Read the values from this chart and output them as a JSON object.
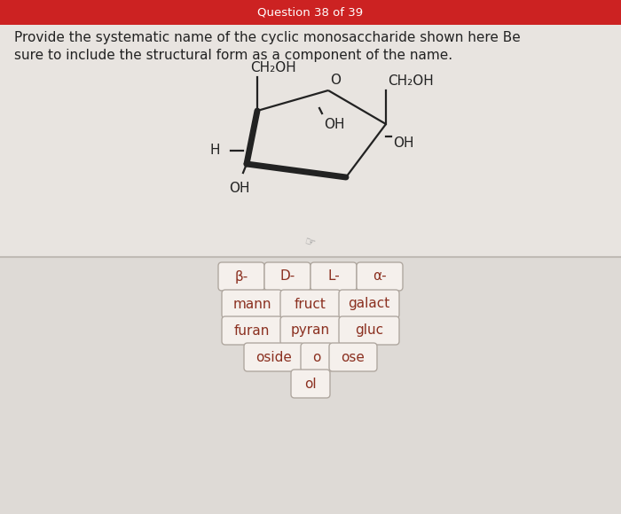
{
  "header_text": "Question 38 of 39",
  "header_bg": "#cc2222",
  "header_text_color": "#ffffff",
  "top_bg": "#e8e4e0",
  "bottom_bg": "#dedad6",
  "divider_color": "#c0bbb5",
  "question_text_color": "#222222",
  "question_line1": "Provide the systematic name of the cyclic monosaccharide shown here Be",
  "question_line2": "sure to include the structural form as a component of the name.",
  "button_bg": "#f5f0ec",
  "button_border": "#b0a8a0",
  "button_text_color": "#8b3020",
  "mol_line_color": "#222222",
  "mol_text_color": "#222222",
  "buttons_row1": [
    "β-",
    "D-",
    "L-",
    "α-"
  ],
  "buttons_row2": [
    "mann",
    "fruct",
    "galact"
  ],
  "buttons_row3": [
    "furan",
    "pyran",
    "gluc"
  ],
  "buttons_row4": [
    "oside",
    "o",
    "ose"
  ],
  "buttons_row5": [
    "ol"
  ]
}
